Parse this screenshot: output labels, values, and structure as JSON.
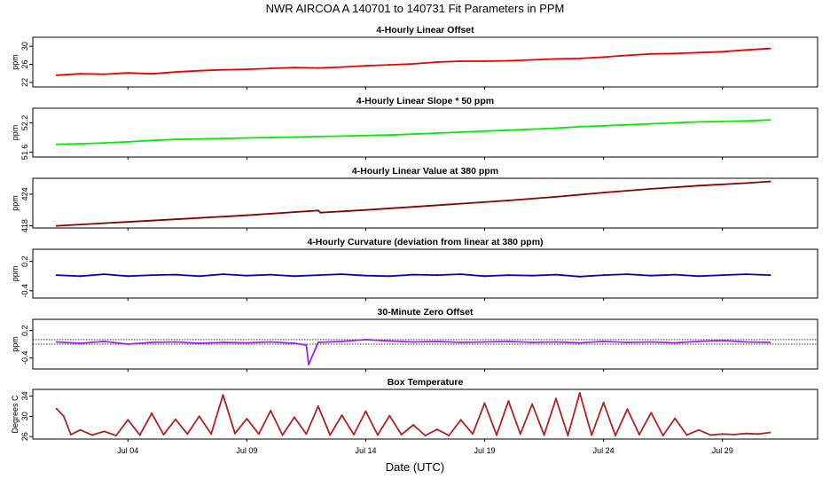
{
  "main_title": "NWR   AIRCOA A   140701 to 140731   Fit Parameters in PPM",
  "x_axis": {
    "label": "Date (UTC)",
    "ticks": [
      "Jul 04",
      "Jul 09",
      "Jul 14",
      "Jul 19",
      "Jul 24",
      "Jul 29"
    ]
  },
  "colors": {
    "offset": "#ee0000",
    "slope": "#00ee00",
    "value": "#8b0000",
    "curvature": "#0000cd",
    "zero": "#a020f0",
    "temperature": "#b22222"
  },
  "chart_data": [
    {
      "type": "line",
      "title": "4-Hourly Linear Offset",
      "ylabel": "ppm",
      "yticks": [
        "22",
        "26",
        "30"
      ],
      "ylim": [
        21,
        32
      ],
      "x_unit": "day of July 2014 (UTC)",
      "xlim": [
        0,
        33
      ],
      "series": [
        {
          "color": "#ee0000",
          "x": [
            1,
            2,
            3,
            4,
            5,
            6,
            7,
            8,
            9,
            10,
            11,
            12,
            13,
            14,
            15,
            16,
            17,
            18,
            19,
            20,
            21,
            22,
            23,
            24,
            25,
            26,
            27,
            28,
            29,
            30,
            31
          ],
          "values": [
            23.6,
            23.9,
            23.8,
            24.1,
            23.9,
            24.3,
            24.6,
            24.8,
            24.9,
            25.1,
            25.3,
            25.2,
            25.4,
            25.7,
            25.9,
            26.1,
            26.5,
            26.7,
            26.7,
            26.8,
            27.0,
            27.2,
            27.3,
            27.6,
            28.0,
            28.3,
            28.4,
            28.6,
            28.8,
            29.2,
            29.5
          ]
        }
      ]
    },
    {
      "type": "line",
      "title": "4-Hourly Linear Slope * 50 ppm",
      "ylabel": "ppm",
      "yticks": [
        "51.6",
        "52.2"
      ],
      "ylim": [
        51.5,
        52.5
      ],
      "x_unit": "day of July 2014 (UTC)",
      "xlim": [
        0,
        33
      ],
      "series": [
        {
          "color": "#00ee00",
          "x": [
            1,
            2,
            3,
            4,
            5,
            6,
            7,
            8,
            9,
            10,
            11,
            12,
            13,
            14,
            15,
            16,
            17,
            18,
            19,
            20,
            21,
            22,
            23,
            24,
            25,
            26,
            27,
            28,
            29,
            30,
            31
          ],
          "values": [
            51.76,
            51.77,
            51.79,
            51.81,
            51.84,
            51.86,
            51.87,
            51.88,
            51.89,
            51.9,
            51.91,
            51.92,
            51.93,
            51.94,
            51.95,
            51.97,
            51.99,
            52.01,
            52.03,
            52.05,
            52.07,
            52.09,
            52.12,
            52.14,
            52.16,
            52.18,
            52.2,
            52.22,
            52.23,
            52.24,
            52.26
          ]
        }
      ]
    },
    {
      "type": "line",
      "title": "4-Hourly Linear Value at 380 ppm",
      "ylabel": "ppm",
      "yticks": [
        "418",
        "424"
      ],
      "ylim": [
        417.6,
        427
      ],
      "x_unit": "day of July 2014 (UTC)",
      "xlim": [
        0,
        33
      ],
      "series": [
        {
          "color": "#8b0000",
          "x": [
            1,
            3,
            5,
            7,
            9,
            11,
            12,
            12.1,
            14,
            16,
            18,
            20,
            22,
            24,
            26,
            28,
            30,
            31
          ],
          "values": [
            418.0,
            418.5,
            419.0,
            419.5,
            420.0,
            420.6,
            420.9,
            420.5,
            421.0,
            421.6,
            422.2,
            422.8,
            423.5,
            424.3,
            425.0,
            425.6,
            426.1,
            426.4
          ]
        }
      ]
    },
    {
      "type": "line",
      "title": "4-Hourly Curvature (deviation from linear at 380 ppm)",
      "ylabel": "ppm",
      "yticks": [
        "-0.4",
        "0.2"
      ],
      "ylim": [
        -0.55,
        0.45
      ],
      "x_unit": "day of July 2014 (UTC)",
      "xlim": [
        0,
        33
      ],
      "series": [
        {
          "color": "#0000cd",
          "x": [
            1,
            2,
            3,
            4,
            5,
            6,
            7,
            8,
            9,
            10,
            11,
            12,
            13,
            14,
            15,
            16,
            17,
            18,
            19,
            20,
            21,
            22,
            23,
            24,
            25,
            26,
            27,
            28,
            29,
            30,
            31
          ],
          "values": [
            -0.08,
            -0.1,
            -0.06,
            -0.1,
            -0.08,
            -0.07,
            -0.1,
            -0.06,
            -0.09,
            -0.07,
            -0.1,
            -0.08,
            -0.06,
            -0.09,
            -0.1,
            -0.07,
            -0.08,
            -0.06,
            -0.1,
            -0.08,
            -0.09,
            -0.07,
            -0.11,
            -0.08,
            -0.06,
            -0.09,
            -0.07,
            -0.1,
            -0.08,
            -0.06,
            -0.08
          ]
        }
      ]
    },
    {
      "type": "line",
      "title": "30-Minute Zero Offset",
      "ylabel": "ppm",
      "yticks": [
        "-0.4",
        "0.2"
      ],
      "ylim": [
        -0.65,
        0.45
      ],
      "reference_lines": [
        0.0,
        -0.1
      ],
      "x_unit": "day of July 2014 (UTC)",
      "xlim": [
        0,
        33
      ],
      "series": [
        {
          "color": "#a020f0",
          "x": [
            1,
            2,
            3,
            4,
            5,
            6,
            7,
            8,
            9,
            10,
            11,
            11.5,
            11.6,
            12,
            13,
            14,
            15,
            16,
            17,
            18,
            19,
            20,
            21,
            22,
            23,
            24,
            25,
            26,
            27,
            28,
            29,
            30,
            31
          ],
          "values": [
            -0.05,
            -0.08,
            -0.04,
            -0.1,
            -0.06,
            -0.05,
            -0.08,
            -0.06,
            -0.07,
            -0.05,
            -0.08,
            -0.12,
            -0.55,
            -0.06,
            -0.04,
            0.0,
            -0.03,
            -0.05,
            -0.04,
            -0.06,
            -0.05,
            -0.04,
            -0.06,
            -0.05,
            -0.07,
            -0.04,
            -0.06,
            -0.05,
            -0.07,
            -0.04,
            -0.02,
            -0.05,
            -0.06
          ]
        }
      ]
    },
    {
      "type": "line",
      "title": "Box Temperature",
      "ylabel": "Degrees C",
      "yticks": [
        "26",
        "30",
        "34"
      ],
      "ylim": [
        25.5,
        35.3
      ],
      "x_unit": "day of July 2014 (UTC)",
      "xlim": [
        0,
        33
      ],
      "series": [
        {
          "color": "#b22222",
          "x": [
            1,
            1.3,
            1.6,
            2,
            2.5,
            3,
            3.5,
            4,
            4.5,
            5,
            5.5,
            6,
            6.5,
            7,
            7.5,
            8,
            8.5,
            9,
            9.5,
            10,
            10.5,
            11,
            11.5,
            12,
            12.5,
            13,
            13.5,
            14,
            14.5,
            15,
            15.5,
            16,
            16.5,
            17,
            17.5,
            18,
            18.5,
            19,
            19.5,
            20,
            20.5,
            21,
            21.5,
            22,
            22.5,
            23,
            23.5,
            24,
            24.5,
            25,
            25.5,
            26,
            26.5,
            27,
            27.5,
            28,
            28.5,
            29,
            29.5,
            30,
            30.5,
            31
          ],
          "values": [
            31.5,
            30.0,
            26.4,
            27.3,
            26.3,
            27.0,
            26.2,
            29.3,
            26.3,
            30.6,
            26.4,
            29.4,
            26.5,
            30.0,
            26.5,
            34.2,
            26.6,
            29.5,
            26.5,
            31.1,
            26.3,
            29.8,
            26.5,
            32.0,
            26.3,
            30.2,
            26.4,
            31.0,
            26.3,
            30.1,
            26.4,
            28.3,
            26.2,
            27.4,
            26.2,
            29.3,
            26.5,
            32.6,
            26.3,
            33.0,
            26.5,
            32.4,
            26.3,
            33.5,
            26.2,
            34.6,
            26.3,
            32.7,
            26.2,
            31.4,
            26.4,
            30.7,
            26.2,
            29.6,
            26.3,
            27.3,
            26.3,
            26.5,
            26.4,
            26.6,
            26.5,
            26.8
          ]
        }
      ]
    }
  ]
}
